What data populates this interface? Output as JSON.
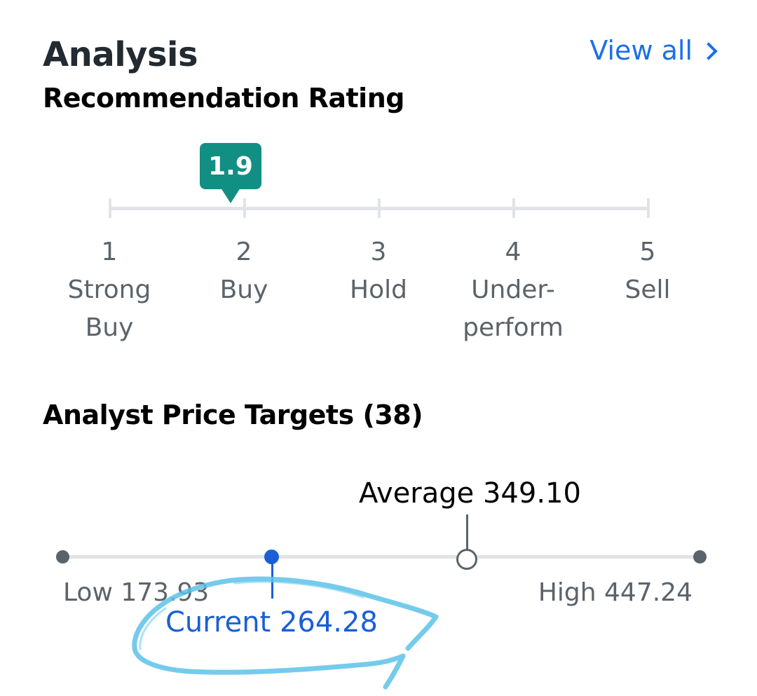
{
  "header": {
    "title": "Analysis",
    "view_all": "View all"
  },
  "recommendation": {
    "title": "Recommendation Rating",
    "rating": "1.9",
    "rating_value": 1.9,
    "scale": [
      {
        "num": "1",
        "label": "Strong Buy"
      },
      {
        "num": "2",
        "label": "Buy"
      },
      {
        "num": "3",
        "label": "Hold"
      },
      {
        "num": "4",
        "label": "Under-perform"
      },
      {
        "num": "5",
        "label": "Sell"
      }
    ]
  },
  "price_targets": {
    "title": "Analyst Price Targets (38)",
    "average_label": "Average 349.10",
    "current_label": "Current 264.28",
    "low_label": "Low 173.93",
    "high_label": "High 447.24",
    "low": 173.93,
    "high": 447.24,
    "average": 349.1,
    "current": 264.28
  },
  "colors": {
    "accent_blue": "#1a6fe8",
    "current_blue": "#1a5fd6",
    "rating_teal": "#128f83",
    "track_gray": "#e1e3e6",
    "text_gray": "#5b636a",
    "annotation_light_blue": "#5cc3e8"
  }
}
